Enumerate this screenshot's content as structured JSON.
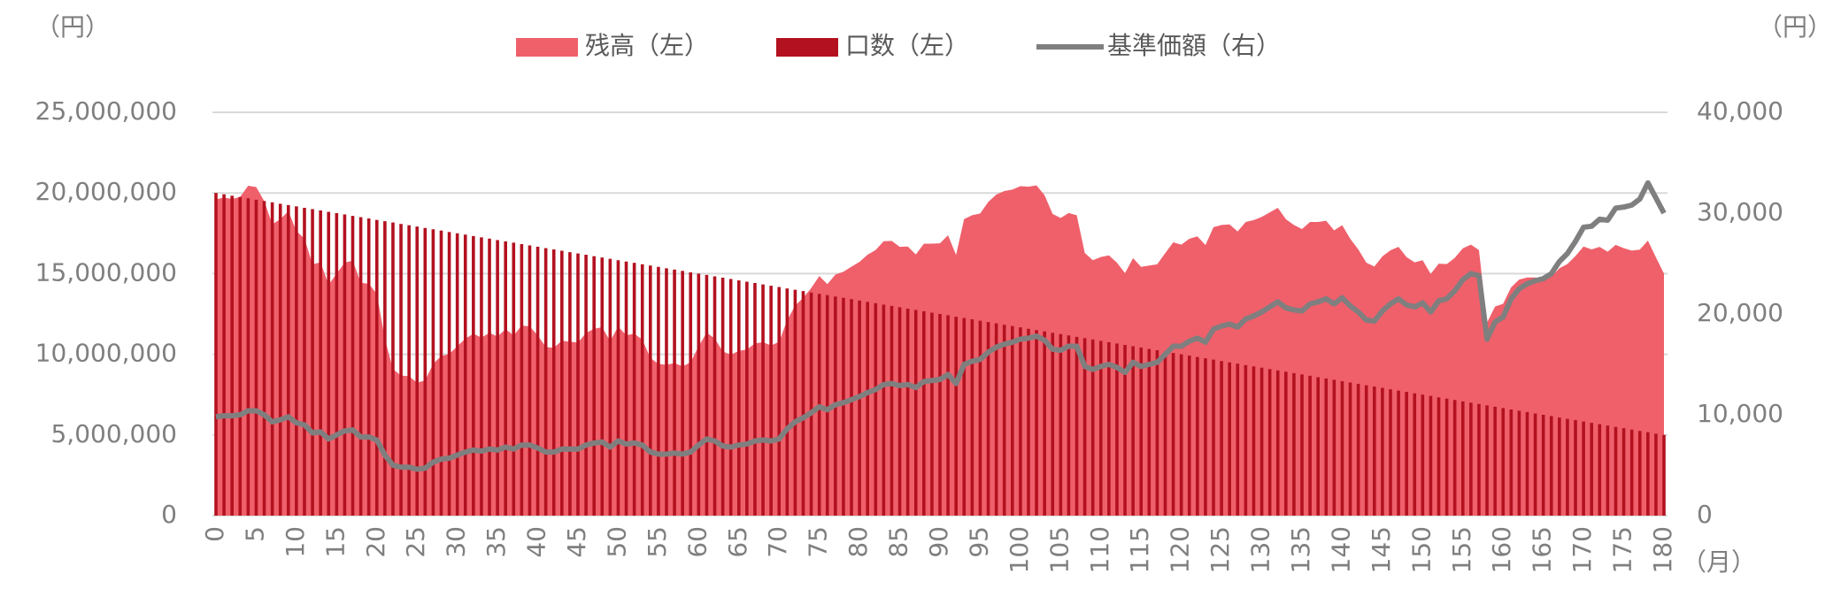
{
  "chart_data": {
    "type": "combo",
    "y_unit": "（円）",
    "y2_unit": "（円）",
    "x_unit": "（月）",
    "x": [
      0,
      1,
      2,
      3,
      4,
      5,
      6,
      7,
      8,
      9,
      10,
      11,
      12,
      13,
      14,
      15,
      16,
      17,
      18,
      19,
      20,
      21,
      22,
      23,
      24,
      25,
      26,
      27,
      28,
      29,
      30,
      31,
      32,
      33,
      34,
      35,
      36,
      37,
      38,
      39,
      40,
      41,
      42,
      43,
      44,
      45,
      46,
      47,
      48,
      49,
      50,
      51,
      52,
      53,
      54,
      55,
      56,
      57,
      58,
      59,
      60,
      61,
      62,
      63,
      64,
      65,
      66,
      67,
      68,
      69,
      70,
      71,
      72,
      73,
      74,
      75,
      76,
      77,
      78,
      79,
      80,
      81,
      82,
      83,
      84,
      85,
      86,
      87,
      88,
      89,
      90,
      91,
      92,
      93,
      94,
      95,
      96,
      97,
      98,
      99,
      100,
      101,
      102,
      103,
      104,
      105,
      106,
      107,
      108,
      109,
      110,
      111,
      112,
      113,
      114,
      115,
      116,
      117,
      118,
      119,
      120,
      121,
      122,
      123,
      124,
      125,
      126,
      127,
      128,
      129,
      130,
      131,
      132,
      133,
      134,
      135,
      136,
      137,
      138,
      139,
      140,
      141,
      142,
      143,
      144,
      145,
      146,
      147,
      148,
      149,
      150,
      151,
      152,
      153,
      154,
      155,
      156,
      157,
      158,
      159,
      160,
      161,
      162,
      163,
      164,
      165,
      166,
      167,
      168,
      169,
      170,
      171,
      172,
      173,
      174,
      175,
      176,
      177,
      178,
      179,
      180
    ],
    "xlim": [
      0,
      180
    ],
    "xticks": [
      0,
      5,
      10,
      15,
      20,
      25,
      30,
      35,
      40,
      45,
      50,
      55,
      60,
      65,
      70,
      75,
      80,
      85,
      90,
      95,
      100,
      105,
      110,
      115,
      120,
      125,
      130,
      135,
      140,
      145,
      150,
      155,
      160,
      165,
      170,
      175,
      180
    ],
    "ylim": [
      0,
      25000000
    ],
    "yticks": [
      0,
      {
        "value": 5000000,
        "label": "5,000,000"
      },
      {
        "value": 10000000,
        "label": "10,000,000"
      },
      {
        "value": 15000000,
        "label": "15,000,000"
      },
      {
        "value": 20000000,
        "label": "20,000,000"
      },
      {
        "value": 25000000,
        "label": "25,000,000"
      }
    ],
    "y2lim": [
      0,
      40000
    ],
    "y2ticks": [
      0,
      {
        "value": 10000,
        "label": "10,000"
      },
      {
        "value": 20000,
        "label": "20,000"
      },
      {
        "value": 30000,
        "label": "30,000"
      },
      {
        "value": 40000,
        "label": "40,000"
      }
    ],
    "grid": true,
    "series": [
      {
        "name": "残高（左）",
        "type": "area",
        "color": "#ef606b",
        "values": [
          19600000,
          19720000,
          19630000,
          19750000,
          20450000,
          20370000,
          19500000,
          18060000,
          18370000,
          18870000,
          17630000,
          17180000,
          15580000,
          15700000,
          14310000,
          15000000,
          15680000,
          15800000,
          14430000,
          14370000,
          13750000,
          10950000,
          9080000,
          8680000,
          8640000,
          8240000,
          8380000,
          9410000,
          9890000,
          10020000,
          10500000,
          10970000,
          11270000,
          11040000,
          11330000,
          11100000,
          11560000,
          11170000,
          11780000,
          11730000,
          11170000,
          10450000,
          10400000,
          10840000,
          10780000,
          10730000,
          11320000,
          11580000,
          11680000,
          10820000,
          11720000,
          11180000,
          11280000,
          10910000,
          9770000,
          9400000,
          9350000,
          9460000,
          9250000,
          9500000,
          10500000,
          11340000,
          10980000,
          10180000,
          9970000,
          10210000,
          10300000,
          10670000,
          10750000,
          10550000,
          10770000,
          12110000,
          13020000,
          13500000,
          14110000,
          14850000,
          14350000,
          14940000,
          15120000,
          15430000,
          15730000,
          16170000,
          16460000,
          17010000,
          17030000,
          16660000,
          16680000,
          16190000,
          16850000,
          16860000,
          16880000,
          17380000,
          16160000,
          18380000,
          18620000,
          18730000,
          19440000,
          19900000,
          20120000,
          20210000,
          20420000,
          20390000,
          20470000,
          19860000,
          18700000,
          18450000,
          18760000,
          18620000,
          16280000,
          15830000,
          16030000,
          16130000,
          15680000,
          15030000,
          15960000,
          15420000,
          15500000,
          15580000,
          16270000,
          16940000,
          16800000,
          17160000,
          17310000,
          16770000,
          17880000,
          18020000,
          18050000,
          17610000,
          18200000,
          18320000,
          18520000,
          18800000,
          19080000,
          18370000,
          18020000,
          17760000,
          18200000,
          18200000,
          18280000,
          17680000,
          18000000,
          17160000,
          16500000,
          15680000,
          15440000,
          16070000,
          16450000,
          16660000,
          16020000,
          15700000,
          15830000,
          14980000,
          15620000,
          15590000,
          15980000,
          16570000,
          16800000,
          16460000,
          11960000,
          12960000,
          13130000,
          14150000,
          14630000,
          14760000,
          14760000,
          14690000,
          14800000,
          15330000,
          15600000,
          16090000,
          16680000,
          16500000,
          16660000,
          16360000,
          16780000,
          16580000,
          16430000,
          16490000,
          17050000,
          16010000,
          15000000
        ]
      },
      {
        "name": "口数（左）",
        "type": "bar",
        "color": "#b3111f",
        "values": [
          20000000,
          19920000,
          19830000,
          19750000,
          19670000,
          19580000,
          19500000,
          19420000,
          19330000,
          19250000,
          19170000,
          19080000,
          19000000,
          18920000,
          18830000,
          18750000,
          18670000,
          18580000,
          18500000,
          18420000,
          18330000,
          18250000,
          18170000,
          18080000,
          18000000,
          17920000,
          17830000,
          17750000,
          17670000,
          17580000,
          17500000,
          17420000,
          17330000,
          17250000,
          17170000,
          17080000,
          17000000,
          16920000,
          16830000,
          16750000,
          16670000,
          16580000,
          16500000,
          16420000,
          16330000,
          16250000,
          16170000,
          16080000,
          16000000,
          15920000,
          15830000,
          15750000,
          15670000,
          15580000,
          15500000,
          15420000,
          15330000,
          15250000,
          15170000,
          15080000,
          15000000,
          14920000,
          14830000,
          14750000,
          14670000,
          14580000,
          14500000,
          14420000,
          14330000,
          14250000,
          14170000,
          14080000,
          14000000,
          13920000,
          13830000,
          13750000,
          13670000,
          13580000,
          13500000,
          13420000,
          13330000,
          13250000,
          13170000,
          13080000,
          13000000,
          12920000,
          12830000,
          12750000,
          12670000,
          12580000,
          12500000,
          12420000,
          12330000,
          12250000,
          12170000,
          12080000,
          12000000,
          11920000,
          11830000,
          11750000,
          11670000,
          11580000,
          11500000,
          11420000,
          11330000,
          11250000,
          11170000,
          11080000,
          11000000,
          10920000,
          10830000,
          10750000,
          10670000,
          10580000,
          10500000,
          10420000,
          10330000,
          10250000,
          10170000,
          10080000,
          10000000,
          9920000,
          9830000,
          9750000,
          9670000,
          9580000,
          9500000,
          9420000,
          9330000,
          9250000,
          9170000,
          9080000,
          9000000,
          8920000,
          8830000,
          8750000,
          8670000,
          8580000,
          8500000,
          8420000,
          8330000,
          8250000,
          8170000,
          8080000,
          8000000,
          7920000,
          7830000,
          7750000,
          7670000,
          7580000,
          7500000,
          7420000,
          7330000,
          7250000,
          7170000,
          7080000,
          7000000,
          6920000,
          6830000,
          6750000,
          6670000,
          6580000,
          6500000,
          6420000,
          6330000,
          6250000,
          6170000,
          6080000,
          6000000,
          5920000,
          5830000,
          5750000,
          5670000,
          5580000,
          5500000,
          5420000,
          5330000,
          5250000,
          5170000,
          5080000,
          5000000
        ]
      },
      {
        "name": "基準価額（右）",
        "type": "line",
        "axis": "y2",
        "color": "#7f7f7f",
        "values": [
          9800,
          9900,
          9900,
          10000,
          10400,
          10400,
          10000,
          9300,
          9500,
          9800,
          9200,
          9000,
          8200,
          8300,
          7600,
          8000,
          8400,
          8500,
          7800,
          7800,
          7500,
          6000,
          5000,
          4800,
          4800,
          4600,
          4700,
          5300,
          5600,
          5700,
          6000,
          6300,
          6500,
          6400,
          6600,
          6500,
          6800,
          6600,
          7000,
          7000,
          6700,
          6300,
          6300,
          6600,
          6600,
          6600,
          7000,
          7200,
          7300,
          6800,
          7400,
          7100,
          7200,
          7000,
          6300,
          6100,
          6100,
          6200,
          6100,
          6300,
          7000,
          7600,
          7400,
          6900,
          6800,
          7000,
          7100,
          7400,
          7500,
          7400,
          7600,
          8600,
          9300,
          9700,
          10200,
          10800,
          10500,
          11000,
          11200,
          11500,
          11800,
          12200,
          12500,
          13000,
          13100,
          12900,
          13000,
          12700,
          13300,
          13400,
          13500,
          14000,
          13100,
          15000,
          15300,
          15500,
          16200,
          16700,
          17000,
          17200,
          17500,
          17600,
          17800,
          17400,
          16500,
          16400,
          16800,
          16800,
          14800,
          14500,
          14800,
          15000,
          14700,
          14200,
          15200,
          14800,
          15000,
          15200,
          16000,
          16800,
          16800,
          17300,
          17600,
          17200,
          18500,
          18800,
          19000,
          18700,
          19500,
          19800,
          20200,
          20700,
          21200,
          20600,
          20400,
          20300,
          21000,
          21200,
          21500,
          21000,
          21600,
          20800,
          20200,
          19400,
          19300,
          20300,
          21000,
          21500,
          20900,
          20700,
          21100,
          20200,
          21300,
          21500,
          22300,
          23400,
          24000,
          23800,
          17500,
          19200,
          19700,
          21500,
          22500,
          23000,
          23300,
          23500,
          24000,
          25200,
          26000,
          27200,
          28600,
          28700,
          29400,
          29300,
          30500,
          30600,
          30800,
          31400,
          33000,
          31500,
          30000
        ]
      }
    ]
  }
}
